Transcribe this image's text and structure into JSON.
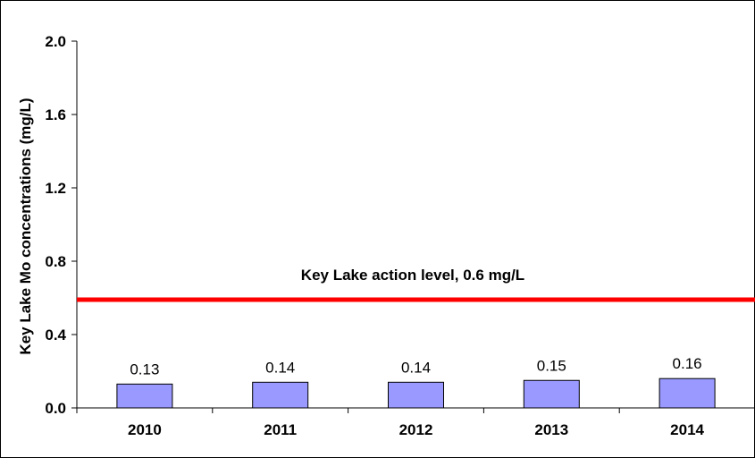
{
  "chart_data": {
    "type": "bar",
    "title": "",
    "xlabel": "",
    "ylabel": "Key Lake Mo concentrations (mg/L)",
    "categories": [
      "2010",
      "2011",
      "2012",
      "2013",
      "2014"
    ],
    "values": [
      0.13,
      0.14,
      0.14,
      0.15,
      0.16
    ],
    "data_labels": [
      "0.13",
      "0.14",
      "0.14",
      "0.15",
      "0.16"
    ],
    "ylim": [
      0,
      2.0
    ],
    "yticks": [
      0.0,
      0.4,
      0.8,
      1.2,
      1.6,
      2.0
    ],
    "ytick_labels": [
      "0.0",
      "0.4",
      "0.8",
      "1.2",
      "1.6",
      "2.0"
    ],
    "grid": false,
    "bar_color": "#9999ff",
    "reference_line": {
      "value": 0.59,
      "label": "Key Lake action level, 0.6 mg/L",
      "color": "#ff0000"
    }
  }
}
